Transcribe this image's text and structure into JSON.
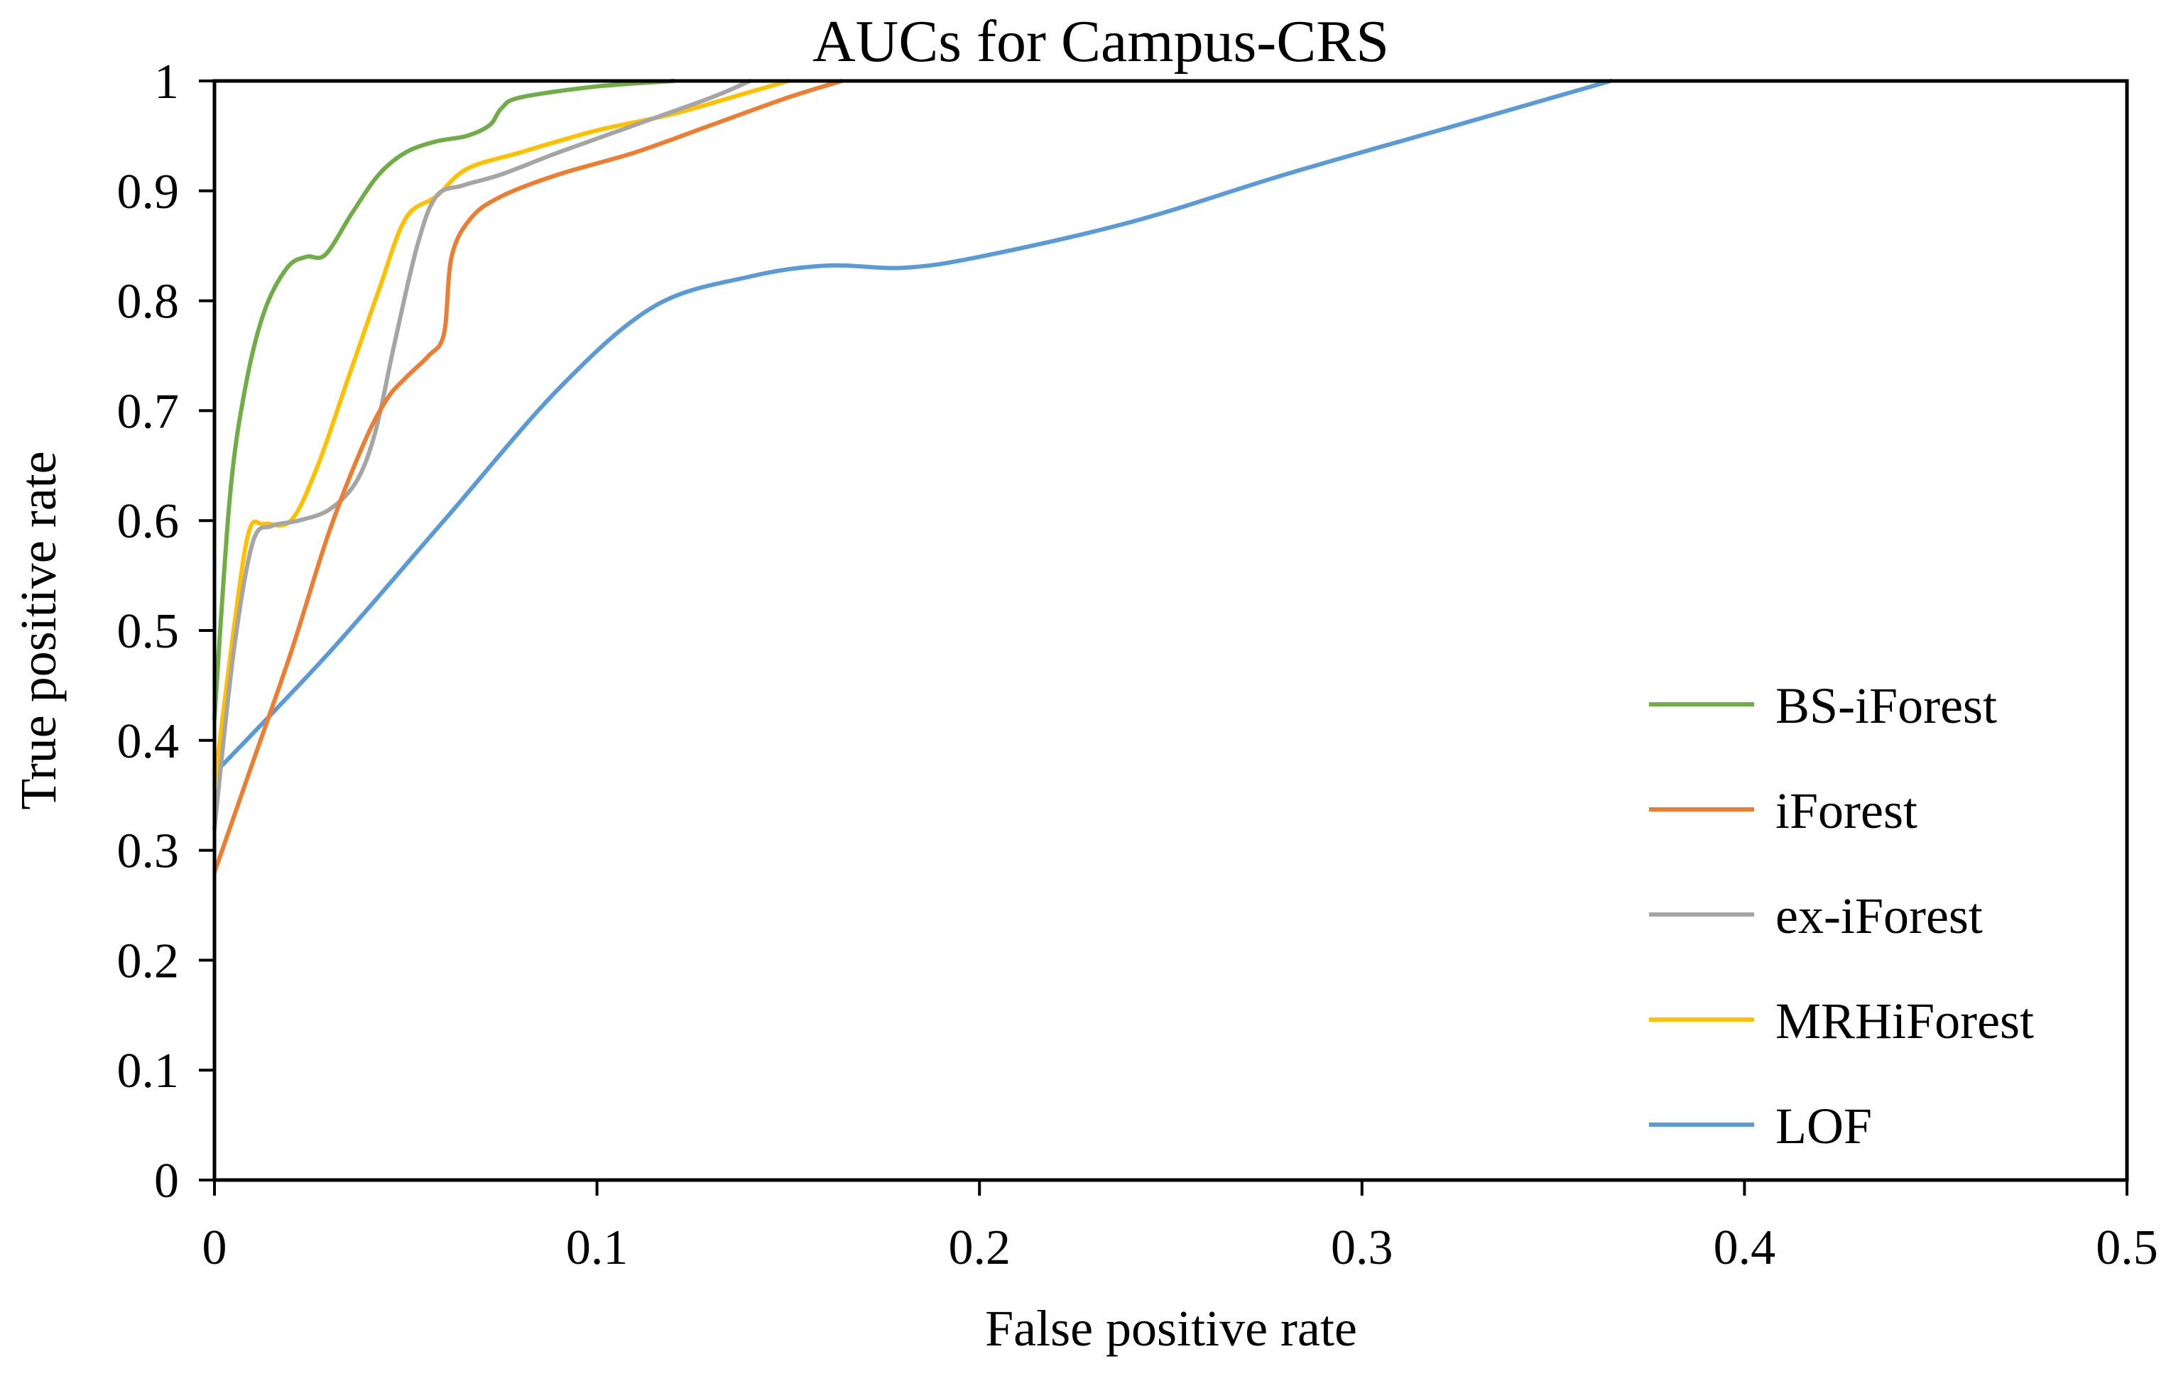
{
  "chart_data": {
    "type": "line",
    "title": "AUCs for Campus-CRS",
    "xlabel": "False positive rate",
    "ylabel": "True positive rate",
    "xlim": [
      0,
      0.5
    ],
    "ylim": [
      0,
      1
    ],
    "x_ticks": [
      "0",
      "0.1",
      "0.2",
      "0.3",
      "0.4",
      "0.5"
    ],
    "y_ticks": [
      "0",
      "0.1",
      "0.2",
      "0.3",
      "0.4",
      "0.5",
      "0.6",
      "0.7",
      "0.8",
      "0.9",
      "1"
    ],
    "legend_position": "bottom-right",
    "series": [
      {
        "name": "BS-iForest",
        "color": "#70AD47",
        "points": [
          [
            0,
            0.42
          ],
          [
            0.004,
            0.62
          ],
          [
            0.008,
            0.72
          ],
          [
            0.013,
            0.79
          ],
          [
            0.019,
            0.83
          ],
          [
            0.024,
            0.84
          ],
          [
            0.029,
            0.842
          ],
          [
            0.036,
            0.88
          ],
          [
            0.043,
            0.915
          ],
          [
            0.05,
            0.935
          ],
          [
            0.058,
            0.945
          ],
          [
            0.066,
            0.95
          ],
          [
            0.072,
            0.96
          ],
          [
            0.075,
            0.975
          ],
          [
            0.08,
            0.985
          ],
          [
            0.1,
            0.995
          ],
          [
            0.12,
            1.0
          ]
        ]
      },
      {
        "name": "iForest",
        "color": "#ED7D31",
        "points": [
          [
            0,
            0.28
          ],
          [
            0.01,
            0.38
          ],
          [
            0.02,
            0.48
          ],
          [
            0.03,
            0.59
          ],
          [
            0.039,
            0.67
          ],
          [
            0.045,
            0.71
          ],
          [
            0.05,
            0.73
          ],
          [
            0.056,
            0.75
          ],
          [
            0.06,
            0.77
          ],
          [
            0.062,
            0.84
          ],
          [
            0.067,
            0.875
          ],
          [
            0.075,
            0.895
          ],
          [
            0.09,
            0.915
          ],
          [
            0.11,
            0.935
          ],
          [
            0.13,
            0.96
          ],
          [
            0.15,
            0.985
          ],
          [
            0.164,
            1.0
          ]
        ]
      },
      {
        "name": "ex-iForest",
        "color": "#A5A5A5",
        "points": [
          [
            0,
            0.32
          ],
          [
            0.005,
            0.48
          ],
          [
            0.01,
            0.58
          ],
          [
            0.015,
            0.595
          ],
          [
            0.022,
            0.6
          ],
          [
            0.03,
            0.61
          ],
          [
            0.037,
            0.635
          ],
          [
            0.042,
            0.68
          ],
          [
            0.047,
            0.76
          ],
          [
            0.053,
            0.85
          ],
          [
            0.058,
            0.895
          ],
          [
            0.065,
            0.905
          ],
          [
            0.075,
            0.915
          ],
          [
            0.09,
            0.935
          ],
          [
            0.11,
            0.96
          ],
          [
            0.13,
            0.985
          ],
          [
            0.14,
            1.0
          ]
        ]
      },
      {
        "name": "MRHiForest",
        "color": "#FFC000",
        "points": [
          [
            0,
            0.36
          ],
          [
            0.005,
            0.5
          ],
          [
            0.009,
            0.59
          ],
          [
            0.013,
            0.597
          ],
          [
            0.02,
            0.6
          ],
          [
            0.027,
            0.65
          ],
          [
            0.035,
            0.73
          ],
          [
            0.043,
            0.81
          ],
          [
            0.05,
            0.875
          ],
          [
            0.058,
            0.895
          ],
          [
            0.066,
            0.92
          ],
          [
            0.08,
            0.935
          ],
          [
            0.1,
            0.955
          ],
          [
            0.12,
            0.97
          ],
          [
            0.14,
            0.99
          ],
          [
            0.15,
            1.0
          ]
        ]
      },
      {
        "name": "LOF",
        "color": "#5B9BD5",
        "points": [
          [
            0,
            0.37
          ],
          [
            0.03,
            0.48
          ],
          [
            0.06,
            0.6
          ],
          [
            0.09,
            0.72
          ],
          [
            0.115,
            0.795
          ],
          [
            0.14,
            0.822
          ],
          [
            0.16,
            0.832
          ],
          [
            0.18,
            0.83
          ],
          [
            0.2,
            0.84
          ],
          [
            0.24,
            0.872
          ],
          [
            0.28,
            0.915
          ],
          [
            0.32,
            0.955
          ],
          [
            0.365,
            1.0
          ]
        ]
      }
    ]
  }
}
